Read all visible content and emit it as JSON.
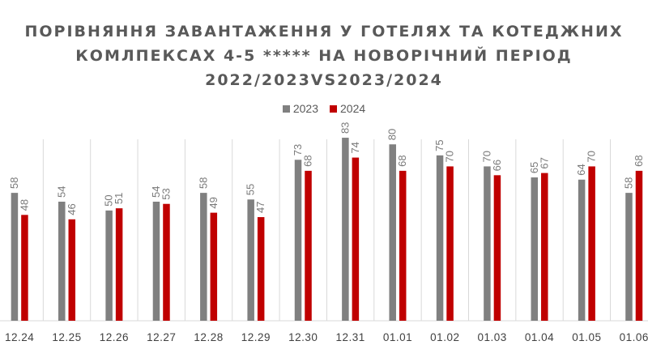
{
  "chart_data": {
    "type": "bar",
    "title_lines": [
      "ПОРІВНЯННЯ ЗАВАНТАЖЕННЯ У ГОТЕЛЯХ ТА КОТЕДЖНИХ",
      "КОМЛПЕКСАХ 4-5 ***** НА НОВОРІЧНИЙ ПЕРІОД",
      "2022/2023VS2023/2024"
    ],
    "categories": [
      "12.24",
      "12.25",
      "12.26",
      "12.27",
      "12.28",
      "12.29",
      "12.30",
      "12.31",
      "01.01",
      "01.02",
      "01.03",
      "01.04",
      "01.05",
      "01.06"
    ],
    "series": [
      {
        "name": "2023",
        "color": "#808080",
        "values": [
          58,
          54,
          50,
          54,
          58,
          55,
          73,
          83,
          80,
          75,
          70,
          65,
          64,
          58
        ]
      },
      {
        "name": "2024",
        "color": "#c00000",
        "values": [
          48,
          46,
          51,
          53,
          49,
          47,
          68,
          74,
          68,
          70,
          66,
          67,
          70,
          68
        ]
      }
    ],
    "ylim": [
      0,
      90
    ],
    "grid": "vertical-category-separators",
    "legend_position": "top"
  }
}
